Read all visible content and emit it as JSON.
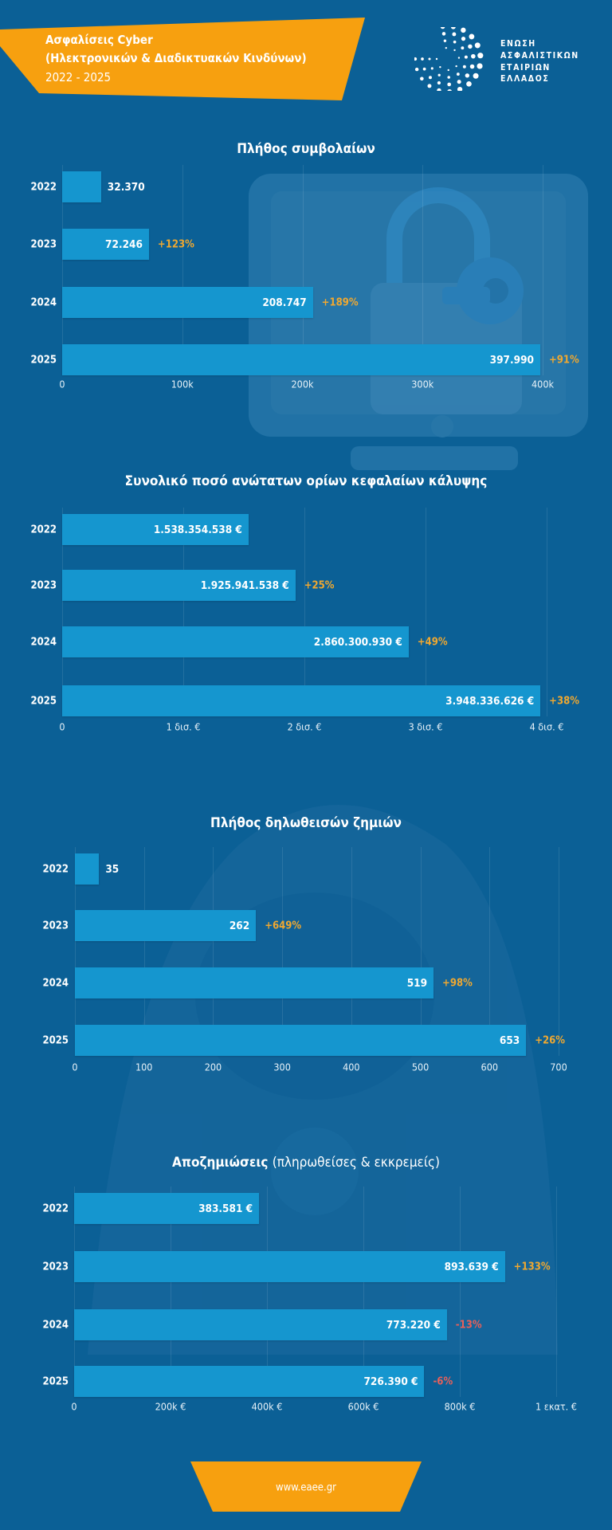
{
  "header": {
    "title_line1": "Ασφαλίσεις Cyber",
    "title_line2": "(Ηλεκτρονικών & Διαδικτυακών Κινδύνων)",
    "period": "2022 - 2025",
    "banner_color": "#f7a00f"
  },
  "logo": {
    "lines": [
      "ΕΝΩΣΗ",
      "ΑΣΦΑΛΙΣΤΙΚΩΝ",
      "ΕΤΑΙΡΙΩΝ",
      "ΕΛΛΑΔΟΣ"
    ]
  },
  "colors": {
    "background": "#0b6096",
    "bar": "#1596cf",
    "positive_change": "#f0a830",
    "negative_change": "#e8605a"
  },
  "chart_data": [
    {
      "type": "bar",
      "orientation": "horizontal",
      "title": "Πλήθος συμβολαίων",
      "categories": [
        "2022",
        "2023",
        "2024",
        "2025"
      ],
      "values": [
        32370,
        72246,
        208747,
        397990
      ],
      "value_labels": [
        "32.370",
        "72.246",
        "208.747",
        "397.990"
      ],
      "changes": [
        "",
        "+123%",
        "+189%",
        "+91%"
      ],
      "xlim": [
        0,
        400000
      ],
      "ticks": [
        {
          "value": 0,
          "label": "0"
        },
        {
          "value": 100000,
          "label": "100k"
        },
        {
          "value": 200000,
          "label": "200k"
        },
        {
          "value": 300000,
          "label": "300k"
        },
        {
          "value": 400000,
          "label": "400k"
        }
      ],
      "grid": true
    },
    {
      "type": "bar",
      "orientation": "horizontal",
      "title": "Συνολικό ποσό ανώτατων ορίων κεφαλαίων κάλυψης",
      "categories": [
        "2022",
        "2023",
        "2024",
        "2025"
      ],
      "values": [
        1538354538,
        1925941538,
        2860300930,
        3948336626
      ],
      "value_labels": [
        "1.538.354.538 €",
        "1.925.941.538 €",
        "2.860.300.930 €",
        "3.948.336.626 €"
      ],
      "changes": [
        "",
        "+25%",
        "+49%",
        "+38%"
      ],
      "xlim": [
        0,
        4000000000
      ],
      "ticks": [
        {
          "value": 0,
          "label": "0"
        },
        {
          "value": 1000000000,
          "label": "1 δισ. €"
        },
        {
          "value": 2000000000,
          "label": "2 δισ. €"
        },
        {
          "value": 3000000000,
          "label": "3 δισ. €"
        },
        {
          "value": 4000000000,
          "label": "4 δισ. €"
        }
      ],
      "grid": true
    },
    {
      "type": "bar",
      "orientation": "horizontal",
      "title": "Πλήθος δηλωθεισών ζημιών",
      "categories": [
        "2022",
        "2023",
        "2024",
        "2025"
      ],
      "values": [
        35,
        262,
        519,
        653
      ],
      "value_labels": [
        "35",
        "262",
        "519",
        "653"
      ],
      "changes": [
        "",
        "+649%",
        "+98%",
        "+26%"
      ],
      "xlim": [
        0,
        700
      ],
      "ticks": [
        {
          "value": 0,
          "label": "0"
        },
        {
          "value": 100,
          "label": "100"
        },
        {
          "value": 200,
          "label": "200"
        },
        {
          "value": 300,
          "label": "300"
        },
        {
          "value": 400,
          "label": "400"
        },
        {
          "value": 500,
          "label": "500"
        },
        {
          "value": 600,
          "label": "600"
        },
        {
          "value": 700,
          "label": "700"
        }
      ],
      "grid": true
    },
    {
      "type": "bar",
      "orientation": "horizontal",
      "title": "Αποζημιώσεις",
      "title_note": "(πληρωθείσες & εκκρεμείς)",
      "categories": [
        "2022",
        "2023",
        "2024",
        "2025"
      ],
      "values": [
        383581,
        893639,
        773220,
        726390
      ],
      "value_labels": [
        "383.581 €",
        "893.639 €",
        "773.220 €",
        "726.390 €"
      ],
      "changes": [
        "",
        "+133%",
        "-13%",
        "-6%"
      ],
      "xlim": [
        0,
        1000000
      ],
      "ticks": [
        {
          "value": 0,
          "label": "0"
        },
        {
          "value": 200000,
          "label": "200k €"
        },
        {
          "value": 400000,
          "label": "400k €"
        },
        {
          "value": 600000,
          "label": "600k €"
        },
        {
          "value": 800000,
          "label": "800k €"
        },
        {
          "value": 1000000,
          "label": "1 εκατ. €"
        }
      ],
      "grid": true
    }
  ],
  "footer": {
    "url": "www.eaee.gr"
  }
}
